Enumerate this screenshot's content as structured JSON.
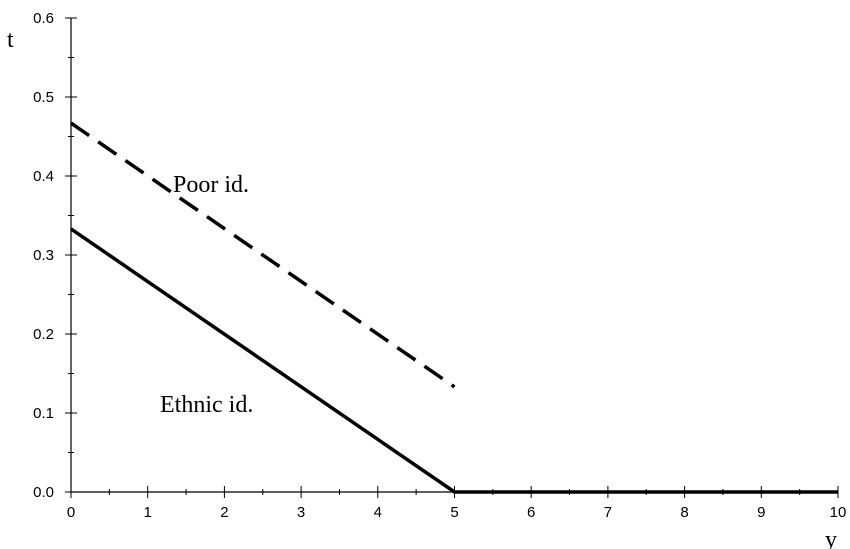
{
  "chart_data": {
    "type": "line",
    "xlabel": "y",
    "ylabel": "t",
    "xlim": [
      0,
      10
    ],
    "ylim": [
      0,
      0.6
    ],
    "x_ticks": [
      "0",
      "1",
      "2",
      "3",
      "4",
      "5",
      "6",
      "7",
      "8",
      "9",
      "10"
    ],
    "y_ticks": [
      "0.0",
      "0.1",
      "0.2",
      "0.3",
      "0.4",
      "0.5",
      "0.6"
    ],
    "grid": false,
    "series": [
      {
        "label": "Poor id.",
        "line_style": "dashed",
        "color": "#000000",
        "points": [
          [
            0,
            0.467
          ],
          [
            5,
            0.133
          ]
        ]
      },
      {
        "label": "Ethnic id.",
        "line_style": "solid",
        "color": "#000000",
        "points": [
          [
            0,
            0.333
          ],
          [
            5,
            0.0
          ],
          [
            10,
            0.0
          ]
        ]
      }
    ]
  }
}
